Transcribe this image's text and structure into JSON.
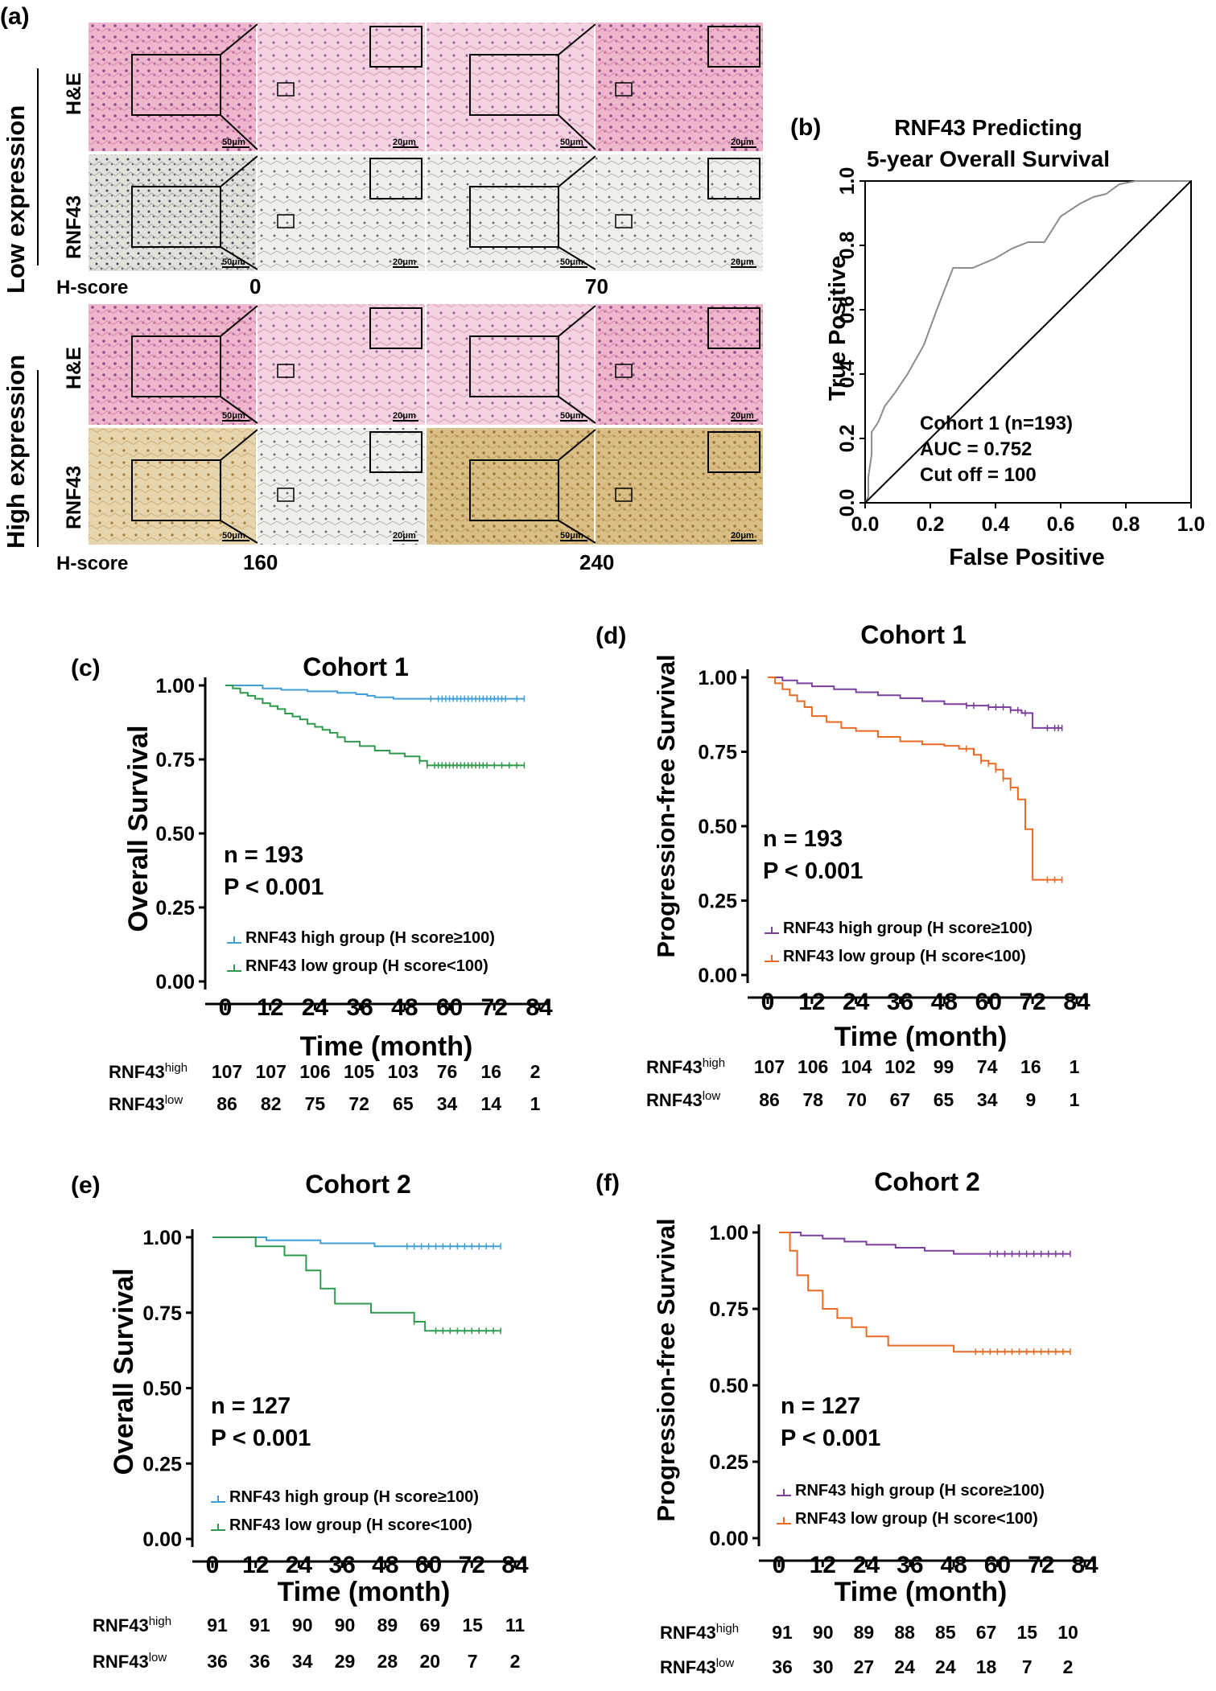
{
  "colors": {
    "high_os": "#3f9fd4",
    "low_os": "#2e9a4c",
    "high_pfs": "#7b3f9e",
    "low_pfs": "#ea6a22",
    "he_pink": "#e8a4c2",
    "rnf_gray": "#c8c6bf",
    "rnf_brown": "#c9a55e"
  },
  "panel_a": {
    "letter": "(a)",
    "low_expression": "Low expression",
    "high_expression": "High expression",
    "row_he": "H&E",
    "row_rnf43": "RNF43",
    "hscore_label": "H-score",
    "low_scores": [
      "0",
      "70"
    ],
    "high_scores": [
      "160",
      "240"
    ],
    "scale_50": "50μm",
    "scale_20": "20μm"
  },
  "chart_data": [
    {
      "id": "b",
      "type": "line",
      "letter": "(b)",
      "title_line1": "RNF43 Predicting",
      "title_line2": "5-year Overall Survival",
      "xlabel": "False Positive",
      "ylabel": "True Positive",
      "xlim": [
        0,
        1
      ],
      "ylim": [
        0,
        1
      ],
      "x_ticks": [
        "0.0",
        "0.2",
        "0.4",
        "0.6",
        "0.8",
        "1.0"
      ],
      "y_ticks": [
        "0.0",
        "0.2",
        "0.4",
        "0.6",
        "0.8",
        "1.0"
      ],
      "annotation": [
        "Cohort 1 (n=193)",
        "AUC = 0.752",
        "Cut off = 100"
      ],
      "series": [
        {
          "name": "ROC",
          "color": "#8c8c8c",
          "x": [
            0,
            0.01,
            0.01,
            0.02,
            0.02,
            0.04,
            0.06,
            0.09,
            0.13,
            0.18,
            0.22,
            0.27,
            0.33,
            0.4,
            0.45,
            0.5,
            0.55,
            0.6,
            0.66,
            0.7,
            0.74,
            0.78,
            0.83,
            1.0
          ],
          "y": [
            0,
            0.02,
            0.08,
            0.15,
            0.22,
            0.25,
            0.3,
            0.34,
            0.4,
            0.49,
            0.6,
            0.73,
            0.73,
            0.76,
            0.79,
            0.81,
            0.81,
            0.89,
            0.93,
            0.95,
            0.96,
            0.99,
            1.0,
            1.0
          ]
        },
        {
          "name": "diagonal",
          "color": "#000000",
          "x": [
            0,
            1
          ],
          "y": [
            0,
            1
          ]
        }
      ]
    },
    {
      "id": "c",
      "type": "line",
      "letter": "(c)",
      "title": "Cohort 1",
      "xlabel": "Time (month)",
      "ylabel": "Overall Survival",
      "xlim": [
        0,
        84
      ],
      "ylim": [
        0,
        1
      ],
      "x_ticks": [
        "0",
        "12",
        "24",
        "36",
        "48",
        "60",
        "72",
        "84"
      ],
      "y_ticks": [
        "0.00",
        "0.25",
        "0.50",
        "0.75",
        "1.00"
      ],
      "annotation": [
        "n = 193",
        "P < 0.001"
      ],
      "legend": [
        "RNF43 high group (H score≥100)",
        "RNF43 low group (H score<100)"
      ],
      "series": [
        {
          "name": "RNF43 high",
          "color": "#3f9fd4",
          "times": [
            0,
            10,
            15,
            22,
            30,
            35,
            38,
            40,
            45,
            48,
            50,
            52,
            55,
            80
          ],
          "surv": [
            1.0,
            0.99,
            0.985,
            0.98,
            0.975,
            0.97,
            0.965,
            0.96,
            0.955,
            0.955,
            0.955,
            0.955,
            0.955,
            0.955
          ],
          "censor": [
            55,
            57,
            58,
            59,
            60,
            61,
            62,
            63,
            64,
            65,
            66,
            67,
            68,
            69,
            70,
            71,
            72,
            73,
            74,
            75,
            78,
            80
          ]
        },
        {
          "name": "RNF43 low",
          "color": "#2e9a4c",
          "times": [
            0,
            2,
            4,
            6,
            8,
            10,
            12,
            14,
            16,
            18,
            20,
            22,
            24,
            26,
            28,
            30,
            32,
            36,
            40,
            44,
            48,
            52,
            54,
            80
          ],
          "surv": [
            1.0,
            0.99,
            0.975,
            0.965,
            0.955,
            0.94,
            0.93,
            0.92,
            0.905,
            0.895,
            0.885,
            0.87,
            0.86,
            0.85,
            0.84,
            0.825,
            0.81,
            0.795,
            0.78,
            0.77,
            0.76,
            0.745,
            0.73,
            0.73
          ],
          "censor": [
            52,
            54,
            56,
            57,
            58,
            59,
            60,
            61,
            62,
            63,
            64,
            65,
            66,
            67,
            68,
            69,
            70,
            72,
            74,
            76,
            78,
            80
          ]
        }
      ],
      "risk_table": [
        {
          "label_main": "RNF43",
          "label_sup": "high",
          "values": [
            "107",
            "107",
            "106",
            "105",
            "103",
            "76",
            "16",
            "2"
          ]
        },
        {
          "label_main": "RNF43",
          "label_sup": "low",
          "values": [
            "86",
            "82",
            "75",
            "72",
            "65",
            "34",
            "14",
            "1"
          ]
        }
      ]
    },
    {
      "id": "d",
      "type": "line",
      "letter": "(d)",
      "title": "Cohort 1",
      "xlabel": "Time (month)",
      "ylabel": "Progression-free Survival",
      "xlim": [
        0,
        84
      ],
      "ylim": [
        0,
        1
      ],
      "x_ticks": [
        "0",
        "12",
        "24",
        "36",
        "48",
        "60",
        "72",
        "84"
      ],
      "y_ticks": [
        "0.00",
        "0.25",
        "0.50",
        "0.75",
        "1.00"
      ],
      "annotation": [
        "n = 193",
        "P < 0.001"
      ],
      "legend": [
        "RNF43 high group (H score≥100)",
        "RNF43 low group (H score<100)"
      ],
      "series": [
        {
          "name": "RNF43 high",
          "color": "#7b3f9e",
          "times": [
            0,
            4,
            8,
            12,
            18,
            24,
            30,
            36,
            42,
            48,
            54,
            60,
            66,
            69,
            72,
            80
          ],
          "surv": [
            1.0,
            0.99,
            0.98,
            0.97,
            0.96,
            0.95,
            0.94,
            0.93,
            0.92,
            0.91,
            0.905,
            0.9,
            0.89,
            0.88,
            0.83,
            0.83
          ],
          "censor": [
            54,
            56,
            60,
            62,
            64,
            66,
            68,
            70,
            76,
            78,
            79,
            80
          ]
        },
        {
          "name": "RNF43 low",
          "color": "#ea6a22",
          "times": [
            0,
            2,
            4,
            6,
            8,
            10,
            12,
            16,
            20,
            24,
            30,
            36,
            42,
            48,
            52,
            56,
            58,
            60,
            62,
            64,
            66,
            68,
            70,
            72,
            80
          ],
          "surv": [
            1.0,
            0.98,
            0.96,
            0.94,
            0.92,
            0.9,
            0.87,
            0.85,
            0.83,
            0.82,
            0.8,
            0.785,
            0.775,
            0.77,
            0.76,
            0.74,
            0.72,
            0.71,
            0.69,
            0.66,
            0.63,
            0.59,
            0.49,
            0.32,
            0.32
          ],
          "censor": [
            54,
            58,
            60,
            62,
            64,
            66,
            76,
            78,
            80
          ]
        }
      ],
      "risk_table": [
        {
          "label_main": "RNF43",
          "label_sup": "high",
          "values": [
            "107",
            "106",
            "104",
            "102",
            "99",
            "74",
            "16",
            "1"
          ]
        },
        {
          "label_main": "RNF43",
          "label_sup": "low",
          "values": [
            "86",
            "78",
            "70",
            "67",
            "65",
            "34",
            "9",
            "1"
          ]
        }
      ]
    },
    {
      "id": "e",
      "type": "line",
      "letter": "(e)",
      "title": "Cohort 2",
      "xlabel": "Time (month)",
      "ylabel": "Overall Survival",
      "xlim": [
        0,
        84
      ],
      "ylim": [
        0,
        1
      ],
      "x_ticks": [
        "0",
        "12",
        "24",
        "36",
        "48",
        "60",
        "72",
        "84"
      ],
      "y_ticks": [
        "0.00",
        "0.25",
        "0.50",
        "0.75",
        "1.00"
      ],
      "annotation": [
        "n = 127",
        "P < 0.001"
      ],
      "legend": [
        "RNF43 high group (H score≥100)",
        "RNF43 low group (H score<100)"
      ],
      "series": [
        {
          "name": "RNF43 high",
          "color": "#3f9fd4",
          "times": [
            0,
            15,
            30,
            45,
            80
          ],
          "surv": [
            1.0,
            0.99,
            0.98,
            0.97,
            0.97
          ],
          "censor": [
            54,
            56,
            58,
            60,
            62,
            64,
            66,
            68,
            70,
            72,
            74,
            76,
            78,
            80
          ]
        },
        {
          "name": "RNF43 low",
          "color": "#2e9a4c",
          "times": [
            0,
            12,
            20,
            26,
            30,
            34,
            44,
            56,
            59,
            80
          ],
          "surv": [
            1.0,
            0.97,
            0.94,
            0.89,
            0.83,
            0.78,
            0.75,
            0.72,
            0.69,
            0.69
          ],
          "censor": [
            56,
            62,
            64,
            66,
            68,
            70,
            72,
            74,
            76,
            78,
            80
          ]
        }
      ],
      "risk_table": [
        {
          "label_main": "RNF43",
          "label_sup": "high",
          "values": [
            "91",
            "91",
            "90",
            "90",
            "89",
            "69",
            "15",
            "11"
          ]
        },
        {
          "label_main": "RNF43",
          "label_sup": "low",
          "values": [
            "36",
            "36",
            "34",
            "29",
            "28",
            "20",
            "7",
            "2"
          ]
        }
      ]
    },
    {
      "id": "f",
      "type": "line",
      "letter": "(f)",
      "title": "Cohort 2",
      "xlabel": "Time (month)",
      "ylabel": "Progression-free Survival",
      "xlim": [
        0,
        84
      ],
      "ylim": [
        0,
        1
      ],
      "x_ticks": [
        "0",
        "12",
        "24",
        "36",
        "48",
        "60",
        "72",
        "84"
      ],
      "y_ticks": [
        "0.00",
        "0.25",
        "0.50",
        "0.75",
        "1.00"
      ],
      "annotation": [
        "n = 127",
        "P < 0.001"
      ],
      "legend": [
        "RNF43 high group (H score≥100)",
        "RNF43 low group (H score<100)"
      ],
      "series": [
        {
          "name": "RNF43 high",
          "color": "#7b3f9e",
          "times": [
            0,
            6,
            12,
            18,
            24,
            32,
            40,
            48,
            80
          ],
          "surv": [
            1.0,
            0.99,
            0.98,
            0.97,
            0.96,
            0.95,
            0.94,
            0.93,
            0.93
          ],
          "censor": [
            58,
            60,
            62,
            64,
            66,
            68,
            70,
            72,
            74,
            76,
            78,
            80
          ]
        },
        {
          "name": "RNF43 low",
          "color": "#ea6a22",
          "times": [
            0,
            3,
            5,
            8,
            12,
            16,
            20,
            24,
            30,
            48,
            80
          ],
          "surv": [
            1.0,
            0.94,
            0.86,
            0.81,
            0.75,
            0.72,
            0.69,
            0.66,
            0.63,
            0.61,
            0.61
          ],
          "censor": [
            54,
            56,
            58,
            60,
            62,
            64,
            66,
            68,
            70,
            72,
            74,
            76,
            78,
            80
          ]
        }
      ],
      "risk_table": [
        {
          "label_main": "RNF43",
          "label_sup": "high",
          "values": [
            "91",
            "90",
            "89",
            "88",
            "85",
            "67",
            "15",
            "10"
          ]
        },
        {
          "label_main": "RNF43",
          "label_sup": "low",
          "values": [
            "36",
            "30",
            "27",
            "24",
            "24",
            "18",
            "7",
            "2"
          ]
        }
      ]
    }
  ]
}
